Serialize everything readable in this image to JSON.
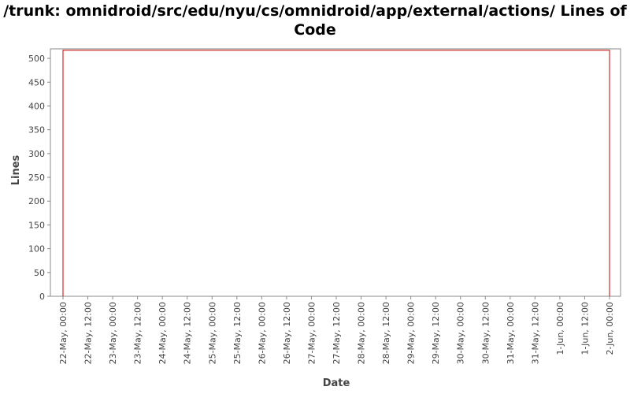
{
  "chart_data": {
    "type": "line",
    "title": "/trunk: omnidroid/src/edu/nyu/cs/omnidroid/app/external/actions/ Lines of Code",
    "xlabel": "Date",
    "ylabel": "Lines",
    "ylim": [
      0,
      520
    ],
    "xlim": [
      "22-May, 00:00",
      "2-Jun, 00:00"
    ],
    "grid": false,
    "legend": "none",
    "x_ticks": [
      "22-May, 00:00",
      "22-May, 12:00",
      "23-May, 00:00",
      "23-May, 12:00",
      "24-May, 00:00",
      "24-May, 12:00",
      "25-May, 00:00",
      "25-May, 12:00",
      "26-May, 00:00",
      "26-May, 12:00",
      "27-May, 00:00",
      "27-May, 12:00",
      "28-May, 00:00",
      "28-May, 12:00",
      "29-May, 00:00",
      "29-May, 12:00",
      "30-May, 00:00",
      "30-May, 12:00",
      "31-May, 00:00",
      "31-May, 12:00",
      "1-Jun, 00:00",
      "1-Jun, 12:00",
      "2-Jun, 00:00"
    ],
    "y_ticks": [
      "0",
      "50",
      "100",
      "150",
      "200",
      "250",
      "300",
      "350",
      "400",
      "450",
      "500"
    ],
    "series": [
      {
        "color": "#cc0000",
        "points": [
          {
            "x": "22-May, 00:00",
            "y": 0
          },
          {
            "x": "22-May, 00:00",
            "y": 517
          },
          {
            "x": "2-Jun, 00:00",
            "y": 517
          },
          {
            "x": "2-Jun, 00:00",
            "y": 0
          }
        ]
      }
    ]
  }
}
